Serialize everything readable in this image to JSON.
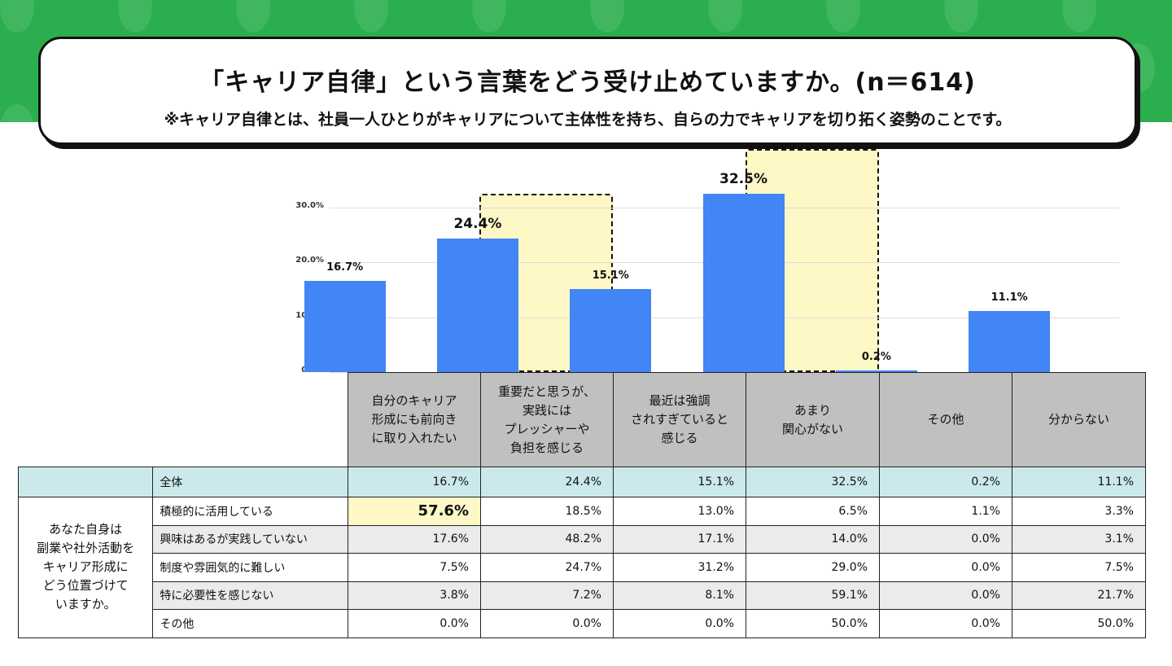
{
  "title": "「キャリア自律」という言葉をどう受け止めていますか。(n＝614)",
  "subtitle": "※キャリア自律とは、社員一人ひとりがキャリアについて主体性を持ち、自らの力でキャリアを切り拓く姿勢のことです。",
  "chart_data": {
    "type": "bar",
    "categories": [
      "自分のキャリア形成にも前向きに取り入れたい",
      "重要だと思うが、実践にはプレッシャーや負担を感じる",
      "最近は強調されすぎていると感じる",
      "あまり関心がない",
      "その他",
      "分からない"
    ],
    "category_lines": [
      [
        "自分のキャリア",
        "形成にも前向き",
        "に取り入れたい"
      ],
      [
        "重要だと思うが、",
        "実践には",
        "プレッシャーや",
        "負担を感じる"
      ],
      [
        "最近は強調",
        "されすぎていると",
        "感じる"
      ],
      [
        "あまり",
        "関心がない"
      ],
      [
        "その他"
      ],
      [
        "分からない"
      ]
    ],
    "values": [
      16.7,
      24.4,
      15.1,
      32.5,
      0.2,
      11.1
    ],
    "data_labels": [
      "16.7%",
      "24.4%",
      "15.1%",
      "32.5%",
      "0.2%",
      "11.1%"
    ],
    "highlighted": [
      1,
      3
    ],
    "ylim": [
      0,
      30
    ],
    "yticks": [
      "0.0%",
      "10.0%",
      "20.0%",
      "30.0%"
    ],
    "grid": true,
    "bar_color": "#4285f4",
    "highlight_color": "#fdf8c6"
  },
  "table": {
    "total_label": "全体",
    "total_values": [
      "16.7%",
      "24.4%",
      "15.1%",
      "32.5%",
      "0.2%",
      "11.1%"
    ],
    "group_label": [
      "あなた自身は",
      "副業や社外活動を",
      "キャリア形成に",
      "どう位置づけて",
      "いますか。"
    ],
    "rows": [
      {
        "label": "積極的に活用している",
        "values": [
          "57.6%",
          "18.5%",
          "13.0%",
          "6.5%",
          "1.1%",
          "3.3%"
        ]
      },
      {
        "label": "興味はあるが実践していない",
        "values": [
          "17.6%",
          "48.2%",
          "17.1%",
          "14.0%",
          "0.0%",
          "3.1%"
        ]
      },
      {
        "label": "制度や雰囲気的に難しい",
        "values": [
          "7.5%",
          "24.7%",
          "31.2%",
          "29.0%",
          "0.0%",
          "7.5%"
        ]
      },
      {
        "label": "特に必要性を感じない",
        "values": [
          "3.8%",
          "7.2%",
          "8.1%",
          "59.1%",
          "0.0%",
          "21.7%"
        ]
      },
      {
        "label": "その他",
        "values": [
          "0.0%",
          "0.0%",
          "0.0%",
          "50.0%",
          "0.0%",
          "50.0%"
        ]
      }
    ],
    "highlight_cell": "57.6%"
  }
}
